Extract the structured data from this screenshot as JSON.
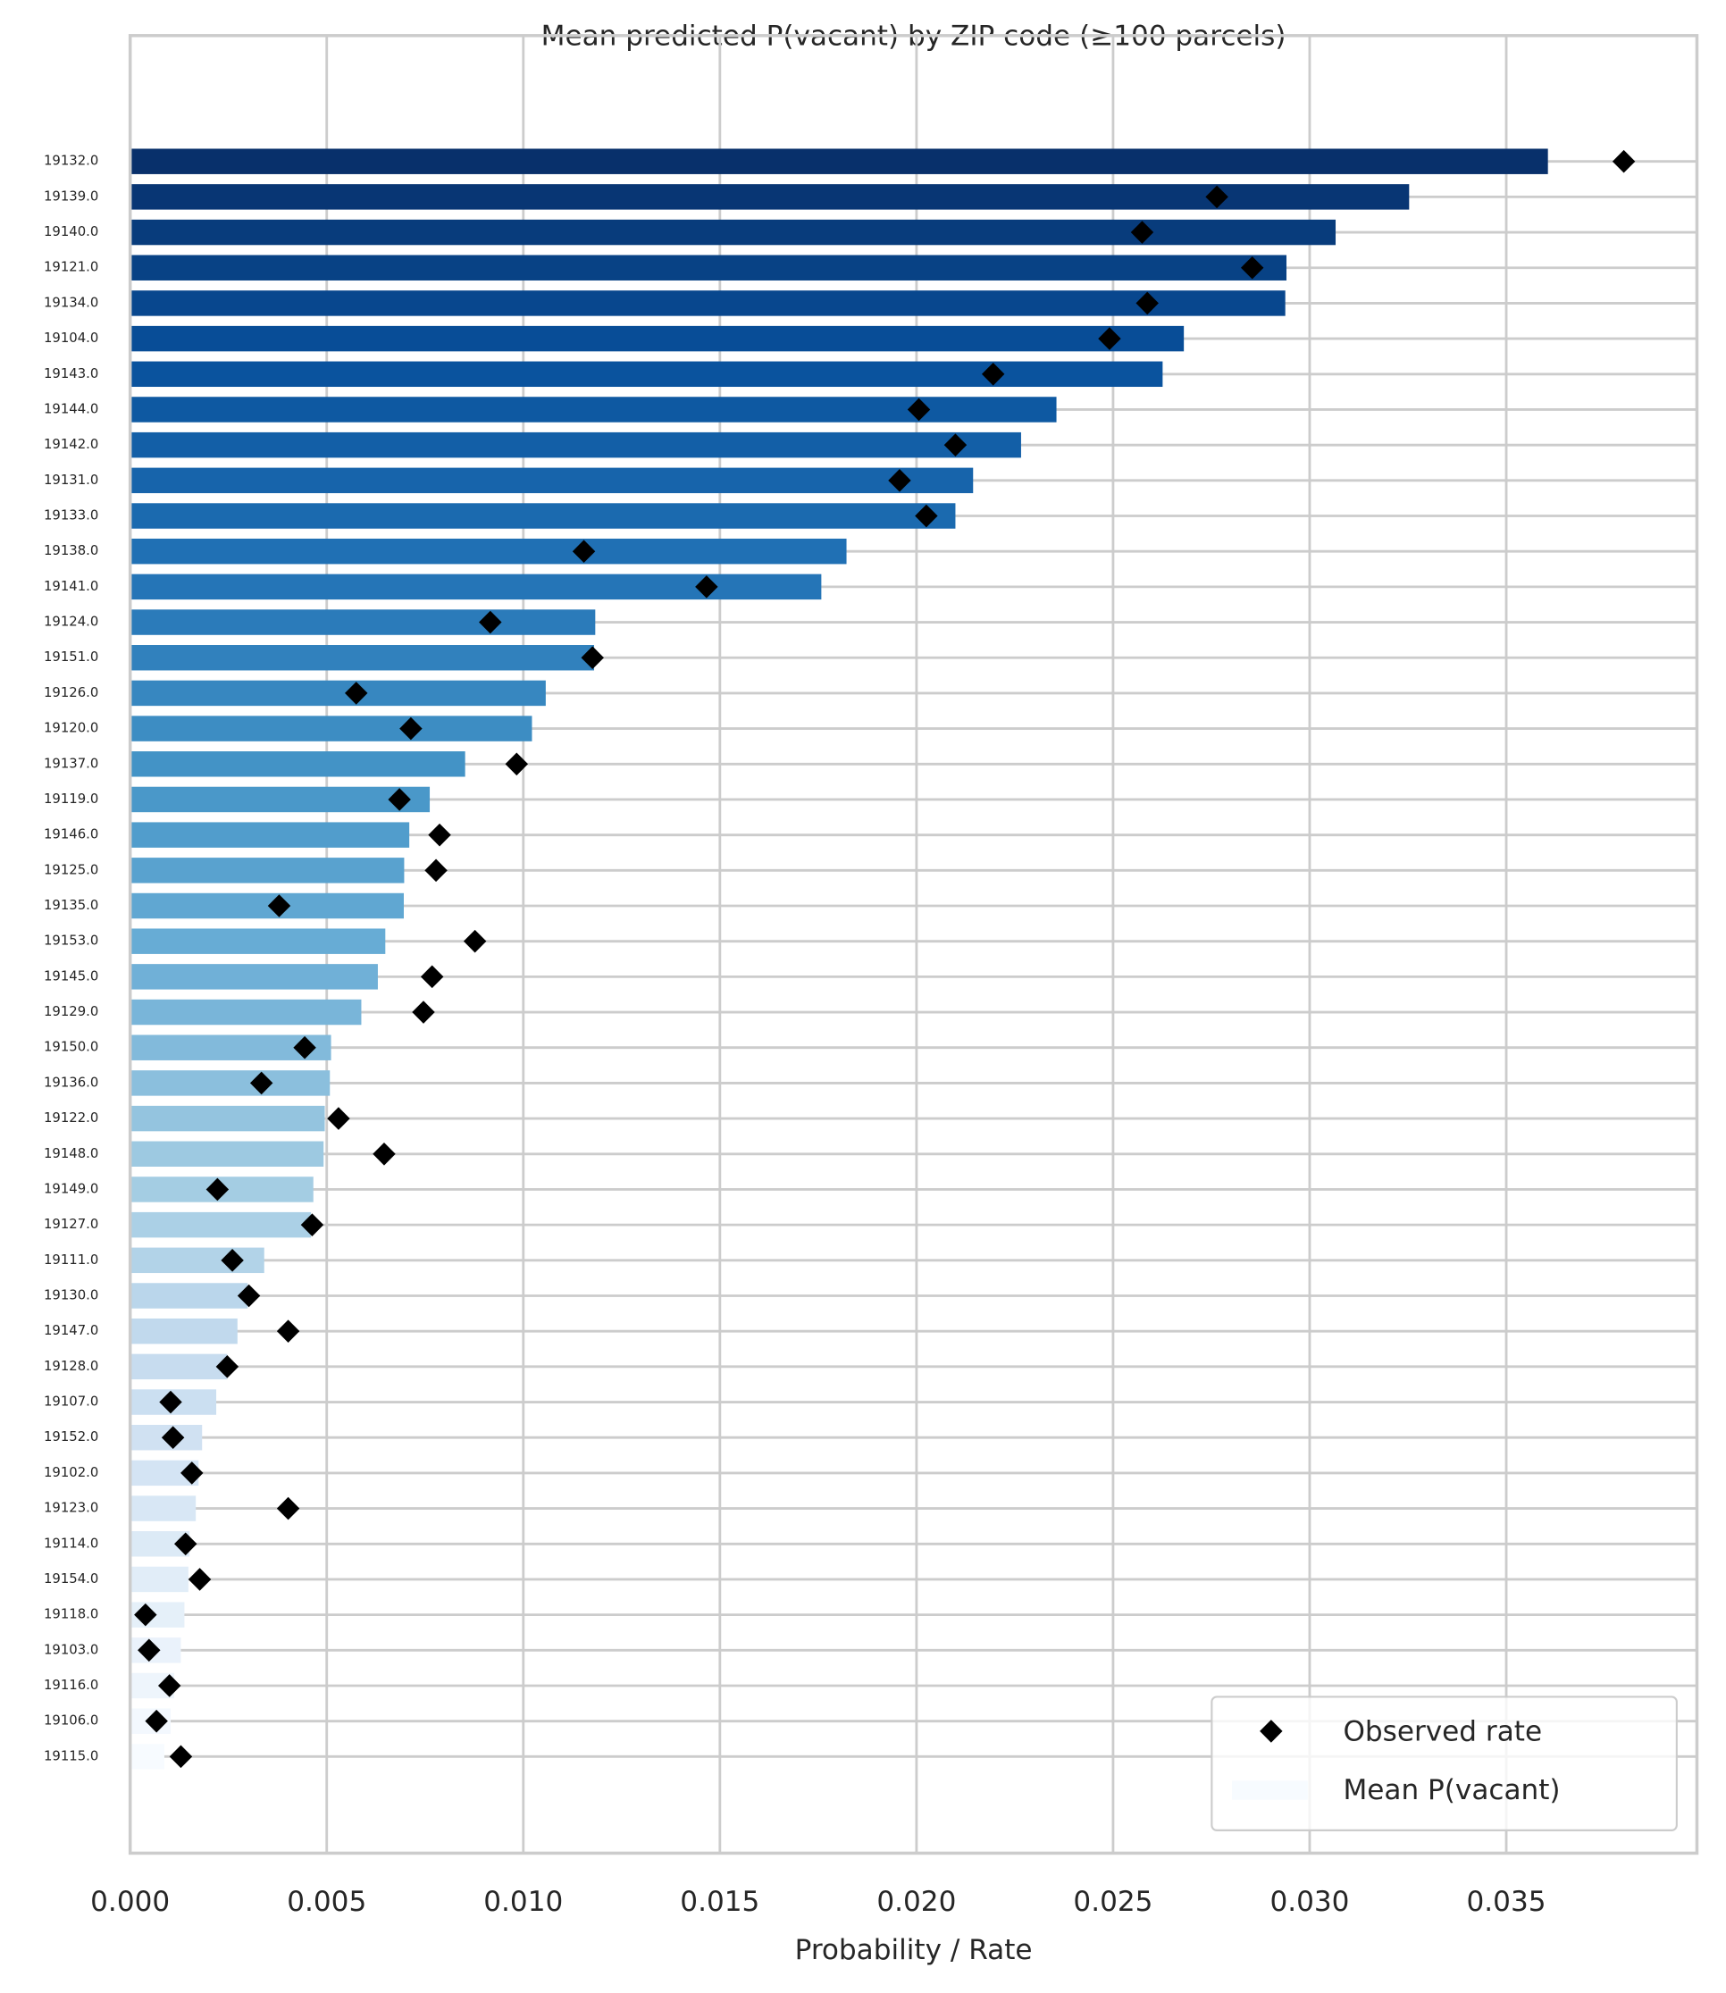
{
  "chart_data": {
    "type": "bar",
    "orientation": "horizontal",
    "title": "Mean predicted P(vacant) by ZIP code (≥100 parcels)",
    "x_label": "Probability / Rate",
    "categories": [
      "19132.0",
      "19139.0",
      "19140.0",
      "19121.0",
      "19134.0",
      "19104.0",
      "19143.0",
      "19144.0",
      "19142.0",
      "19131.0",
      "19133.0",
      "19138.0",
      "19141.0",
      "19124.0",
      "19151.0",
      "19126.0",
      "19120.0",
      "19137.0",
      "19119.0",
      "19146.0",
      "19125.0",
      "19135.0",
      "19153.0",
      "19145.0",
      "19129.0",
      "19150.0",
      "19136.0",
      "19122.0",
      "19148.0",
      "19149.0",
      "19127.0",
      "19111.0",
      "19130.0",
      "19147.0",
      "19128.0",
      "19107.0",
      "19152.0",
      "19102.0",
      "19123.0",
      "19114.0",
      "19154.0",
      "19118.0",
      "19103.0",
      "19116.0",
      "19106.0",
      "19115.0"
    ],
    "series": [
      {
        "name": "Mean P(vacant)",
        "colormap": [
          "#08306b",
          "#08519c",
          "#2171b5",
          "#4292c6",
          "#6baed6",
          "#9ecae1",
          "#c6dbef",
          "#deebf7",
          "#f7fbff"
        ],
        "values": [
          0.03606,
          0.03253,
          0.03066,
          0.02941,
          0.02938,
          0.0268,
          0.02626,
          0.02356,
          0.02266,
          0.02144,
          0.02099,
          0.01822,
          0.01758,
          0.01183,
          0.0118,
          0.01057,
          0.01022,
          0.00852,
          0.00762,
          0.0071,
          0.00697,
          0.00696,
          0.00649,
          0.0063,
          0.00588,
          0.00511,
          0.00508,
          0.00495,
          0.00492,
          0.00466,
          0.0046,
          0.00341,
          0.00299,
          0.00273,
          0.00247,
          0.00219,
          0.00183,
          0.00174,
          0.00167,
          0.00151,
          0.00148,
          0.00138,
          0.00129,
          0.00112,
          0.00103,
          0.00087
        ]
      },
      {
        "name": "Observed rate",
        "color": "#000000",
        "marker": "diamond",
        "values": [
          0.03799,
          0.02764,
          0.02574,
          0.02854,
          0.02587,
          0.02491,
          0.02195,
          0.02006,
          0.02099,
          0.01957,
          0.02025,
          0.01154,
          0.01466,
          0.00916,
          0.01176,
          0.00575,
          0.00714,
          0.00983,
          0.00685,
          0.00787,
          0.00778,
          0.00379,
          0.00877,
          0.00768,
          0.00746,
          0.00444,
          0.00334,
          0.0053,
          0.00646,
          0.00222,
          0.00463,
          0.0026,
          0.00302,
          0.00402,
          0.00247,
          0.00103,
          0.00109,
          0.00157,
          0.00402,
          0.00141,
          0.00177,
          0.00039,
          0.00048,
          0.001,
          0.00067,
          0.00129
        ]
      }
    ],
    "xlim": [
      0,
      0.03985
    ],
    "xticks": [
      {
        "value": 0,
        "label": "0.000"
      },
      {
        "value": 0.005,
        "label": "0.005"
      },
      {
        "value": 0.01,
        "label": "0.010"
      },
      {
        "value": 0.015,
        "label": "0.015"
      },
      {
        "value": 0.02,
        "label": "0.020"
      },
      {
        "value": 0.025,
        "label": "0.025"
      },
      {
        "value": 0.03,
        "label": "0.030"
      },
      {
        "value": 0.035,
        "label": "0.035"
      }
    ],
    "grid": true,
    "legend": "lower right"
  }
}
